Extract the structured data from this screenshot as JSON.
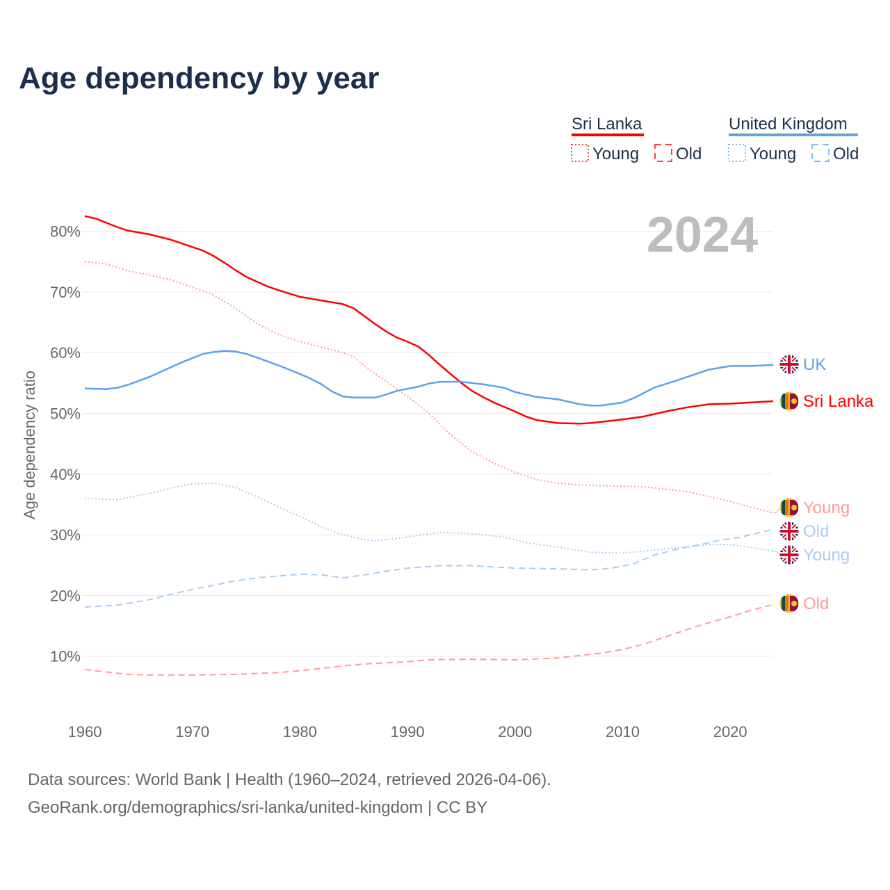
{
  "title": "Age dependency by year",
  "footer": {
    "line1": "Data sources: World Bank | Health (1960–2024, retrieved 2026-04-06).",
    "line2": "GeoRank.org/demographics/sri-lanka/united-kingdom | CC BY"
  },
  "legend": {
    "groups": [
      {
        "name": "Sri Lanka",
        "color": "#ff0000",
        "items": [
          "Young",
          "Old"
        ]
      },
      {
        "name": "United Kingdom",
        "color": "#5ba3ea",
        "items": [
          "Young",
          "Old"
        ]
      }
    ]
  },
  "chart_data": {
    "type": "line",
    "title": "Age dependency by year",
    "xlabel": "",
    "ylabel": "Age dependency ratio",
    "year_label": "2024",
    "xlim": [
      1960,
      2024
    ],
    "ylim": [
      0,
      85
    ],
    "xticks": [
      1960,
      1970,
      1980,
      1990,
      2000,
      2010,
      2020
    ],
    "yticks": [
      10,
      20,
      30,
      40,
      50,
      60,
      70,
      80
    ],
    "ytick_labels": [
      "10%",
      "20%",
      "30%",
      "40%",
      "50%",
      "60%",
      "70%",
      "80%"
    ],
    "series": [
      {
        "name": "Sri Lanka",
        "end_label": "Sri Lanka",
        "flag": "lk",
        "color": "#ff0000",
        "style": "solid",
        "points": [
          [
            1960,
            82.5
          ],
          [
            1961,
            82.1
          ],
          [
            1962,
            81.4
          ],
          [
            1963,
            80.7
          ],
          [
            1964,
            80.1
          ],
          [
            1966,
            79.5
          ],
          [
            1968,
            78.6
          ],
          [
            1970,
            77.4
          ],
          [
            1971,
            76.8
          ],
          [
            1972,
            75.9
          ],
          [
            1973,
            74.8
          ],
          [
            1974,
            73.6
          ],
          [
            1975,
            72.5
          ],
          [
            1976,
            71.7
          ],
          [
            1977,
            70.9
          ],
          [
            1978,
            70.3
          ],
          [
            1980,
            69.2
          ],
          [
            1982,
            68.6
          ],
          [
            1984,
            68.0
          ],
          [
            1985,
            67.3
          ],
          [
            1986,
            66.0
          ],
          [
            1987,
            64.7
          ],
          [
            1988,
            63.5
          ],
          [
            1989,
            62.5
          ],
          [
            1990,
            61.8
          ],
          [
            1991,
            61.0
          ],
          [
            1992,
            59.6
          ],
          [
            1993,
            58.0
          ],
          [
            1994,
            56.5
          ],
          [
            1995,
            55.0
          ],
          [
            1996,
            53.7
          ],
          [
            1997,
            52.7
          ],
          [
            1998,
            51.8
          ],
          [
            2000,
            50.3
          ],
          [
            2001,
            49.5
          ],
          [
            2002,
            48.9
          ],
          [
            2004,
            48.4
          ],
          [
            2006,
            48.3
          ],
          [
            2007,
            48.4
          ],
          [
            2008,
            48.6
          ],
          [
            2010,
            49.0
          ],
          [
            2012,
            49.5
          ],
          [
            2014,
            50.3
          ],
          [
            2016,
            51.0
          ],
          [
            2018,
            51.5
          ],
          [
            2020,
            51.6
          ],
          [
            2022,
            51.8
          ],
          [
            2024,
            52.0
          ]
        ]
      },
      {
        "name": "Sri Lanka Young",
        "end_label": "Young",
        "flag": "lk",
        "color": "#ff9a9a",
        "style": "dotted",
        "points": [
          [
            1960,
            75.0
          ],
          [
            1962,
            74.6
          ],
          [
            1964,
            73.5
          ],
          [
            1966,
            72.8
          ],
          [
            1968,
            72.0
          ],
          [
            1970,
            70.8
          ],
          [
            1972,
            69.5
          ],
          [
            1974,
            67.3
          ],
          [
            1976,
            64.8
          ],
          [
            1978,
            63.0
          ],
          [
            1980,
            61.8
          ],
          [
            1982,
            60.9
          ],
          [
            1984,
            60.0
          ],
          [
            1985,
            59.3
          ],
          [
            1986,
            57.8
          ],
          [
            1988,
            55.3
          ],
          [
            1990,
            52.8
          ],
          [
            1992,
            50.0
          ],
          [
            1994,
            46.5
          ],
          [
            1996,
            43.7
          ],
          [
            1998,
            41.8
          ],
          [
            2000,
            40.3
          ],
          [
            2002,
            39.1
          ],
          [
            2004,
            38.5
          ],
          [
            2006,
            38.2
          ],
          [
            2008,
            38.1
          ],
          [
            2010,
            38.0
          ],
          [
            2012,
            37.9
          ],
          [
            2014,
            37.5
          ],
          [
            2016,
            37.1
          ],
          [
            2018,
            36.3
          ],
          [
            2020,
            35.5
          ],
          [
            2022,
            34.5
          ],
          [
            2024,
            33.6
          ]
        ]
      },
      {
        "name": "Sri Lanka Old",
        "end_label": "Old",
        "flag": "lk",
        "color": "#ff9a9a",
        "style": "dashed",
        "points": [
          [
            1960,
            7.8
          ],
          [
            1962,
            7.4
          ],
          [
            1964,
            7.0
          ],
          [
            1966,
            6.9
          ],
          [
            1970,
            6.9
          ],
          [
            1974,
            7.0
          ],
          [
            1978,
            7.3
          ],
          [
            1980,
            7.6
          ],
          [
            1982,
            8.0
          ],
          [
            1984,
            8.4
          ],
          [
            1986,
            8.7
          ],
          [
            1990,
            9.1
          ],
          [
            1992,
            9.4
          ],
          [
            1996,
            9.5
          ],
          [
            2000,
            9.4
          ],
          [
            2004,
            9.7
          ],
          [
            2006,
            10.1
          ],
          [
            2008,
            10.5
          ],
          [
            2010,
            11.1
          ],
          [
            2012,
            12.0
          ],
          [
            2014,
            13.2
          ],
          [
            2016,
            14.4
          ],
          [
            2018,
            15.5
          ],
          [
            2020,
            16.5
          ],
          [
            2022,
            17.6
          ],
          [
            2024,
            18.5
          ]
        ]
      },
      {
        "name": "United Kingdom",
        "end_label": "UK",
        "flag": "gb",
        "color": "#5ba3ea",
        "style": "solid",
        "points": [
          [
            1960,
            54.1
          ],
          [
            1962,
            54.0
          ],
          [
            1963,
            54.2
          ],
          [
            1964,
            54.7
          ],
          [
            1966,
            56.0
          ],
          [
            1968,
            57.6
          ],
          [
            1969,
            58.4
          ],
          [
            1970,
            59.1
          ],
          [
            1971,
            59.8
          ],
          [
            1972,
            60.1
          ],
          [
            1973,
            60.3
          ],
          [
            1974,
            60.2
          ],
          [
            1975,
            59.8
          ],
          [
            1976,
            59.2
          ],
          [
            1978,
            57.9
          ],
          [
            1980,
            56.5
          ],
          [
            1981,
            55.7
          ],
          [
            1982,
            54.8
          ],
          [
            1983,
            53.6
          ],
          [
            1984,
            52.8
          ],
          [
            1985,
            52.6
          ],
          [
            1987,
            52.6
          ],
          [
            1988,
            53.1
          ],
          [
            1989,
            53.7
          ],
          [
            1991,
            54.4
          ],
          [
            1992,
            54.9
          ],
          [
            1993,
            55.2
          ],
          [
            1995,
            55.2
          ],
          [
            1997,
            54.8
          ],
          [
            1999,
            54.2
          ],
          [
            2000,
            53.5
          ],
          [
            2002,
            52.7
          ],
          [
            2004,
            52.3
          ],
          [
            2006,
            51.5
          ],
          [
            2007,
            51.3
          ],
          [
            2008,
            51.3
          ],
          [
            2010,
            51.8
          ],
          [
            2011,
            52.5
          ],
          [
            2013,
            54.3
          ],
          [
            2015,
            55.4
          ],
          [
            2016,
            56.0
          ],
          [
            2018,
            57.2
          ],
          [
            2020,
            57.8
          ],
          [
            2022,
            57.8
          ],
          [
            2024,
            58.0
          ]
        ]
      },
      {
        "name": "United Kingdom Old",
        "end_label": "Old",
        "flag": "gb",
        "color": "#a8ccf0",
        "style": "dashed",
        "points": [
          [
            1960,
            18.1
          ],
          [
            1963,
            18.4
          ],
          [
            1966,
            19.3
          ],
          [
            1968,
            20.2
          ],
          [
            1970,
            21.0
          ],
          [
            1972,
            21.7
          ],
          [
            1974,
            22.4
          ],
          [
            1976,
            22.9
          ],
          [
            1978,
            23.2
          ],
          [
            1980,
            23.5
          ],
          [
            1982,
            23.4
          ],
          [
            1984,
            22.9
          ],
          [
            1986,
            23.4
          ],
          [
            1988,
            24.0
          ],
          [
            1990,
            24.5
          ],
          [
            1993,
            24.9
          ],
          [
            1996,
            24.9
          ],
          [
            2000,
            24.5
          ],
          [
            2004,
            24.4
          ],
          [
            2007,
            24.2
          ],
          [
            2009,
            24.5
          ],
          [
            2011,
            25.2
          ],
          [
            2013,
            26.7
          ],
          [
            2015,
            27.6
          ],
          [
            2017,
            28.3
          ],
          [
            2019,
            29.1
          ],
          [
            2021,
            29.6
          ],
          [
            2023,
            30.5
          ],
          [
            2024,
            30.9
          ]
        ]
      },
      {
        "name": "United Kingdom Young",
        "end_label": "Young",
        "flag": "gb",
        "color": "#a8ccf0",
        "style": "dotted",
        "points": [
          [
            1960,
            36.0
          ],
          [
            1963,
            35.8
          ],
          [
            1966,
            36.8
          ],
          [
            1968,
            37.7
          ],
          [
            1970,
            38.4
          ],
          [
            1972,
            38.5
          ],
          [
            1974,
            37.8
          ],
          [
            1976,
            36.3
          ],
          [
            1978,
            34.6
          ],
          [
            1980,
            33.0
          ],
          [
            1982,
            31.3
          ],
          [
            1984,
            30.0
          ],
          [
            1986,
            29.2
          ],
          [
            1987,
            29.0
          ],
          [
            1989,
            29.4
          ],
          [
            1991,
            29.9
          ],
          [
            1993,
            30.4
          ],
          [
            1995,
            30.3
          ],
          [
            1997,
            30.0
          ],
          [
            1999,
            29.6
          ],
          [
            2001,
            28.7
          ],
          [
            2003,
            28.2
          ],
          [
            2005,
            27.7
          ],
          [
            2007,
            27.1
          ],
          [
            2010,
            27.0
          ],
          [
            2012,
            27.3
          ],
          [
            2014,
            27.7
          ],
          [
            2016,
            28.0
          ],
          [
            2018,
            28.4
          ],
          [
            2020,
            28.4
          ],
          [
            2022,
            27.9
          ],
          [
            2024,
            27.3
          ]
        ]
      }
    ]
  }
}
